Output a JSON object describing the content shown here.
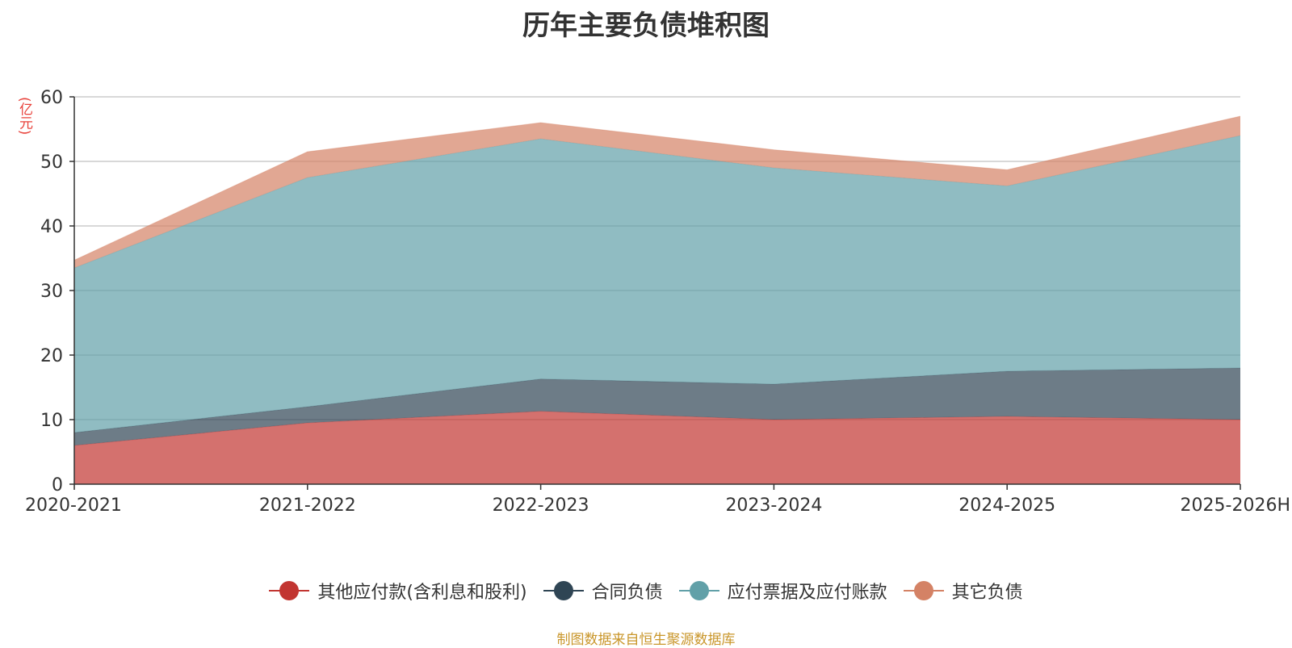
{
  "chart_data": {
    "type": "area",
    "stacked": true,
    "title": "历年主要负债堆积图",
    "ylabel": "(亿元)",
    "xlabel": "",
    "categories": [
      "2020-2021",
      "2021-2022",
      "2022-2023",
      "2023-2024",
      "2024-2025",
      "2025-2026H"
    ],
    "ylim": [
      0,
      60
    ],
    "yticks": [
      0,
      10,
      20,
      30,
      40,
      50,
      60
    ],
    "grid": true,
    "legend_position": "bottom",
    "series": [
      {
        "name": "其他应付款(含利息和股利)",
        "color": "#c23531",
        "values": [
          6.0,
          9.5,
          11.3,
          10.0,
          10.5,
          10.0
        ]
      },
      {
        "name": "合同负债",
        "color": "#2f4554",
        "values": [
          2.0,
          2.5,
          5.0,
          5.5,
          7.0,
          8.0
        ]
      },
      {
        "name": "应付票据及应付账款",
        "color": "#61a0a8",
        "values": [
          25.5,
          35.5,
          37.2,
          33.5,
          28.7,
          36.0
        ]
      },
      {
        "name": "其它负债",
        "color": "#d48265",
        "values": [
          1.2,
          4.0,
          2.5,
          2.8,
          2.5,
          3.0
        ]
      }
    ]
  },
  "source_note": "制图数据来自恒生聚源数据库"
}
